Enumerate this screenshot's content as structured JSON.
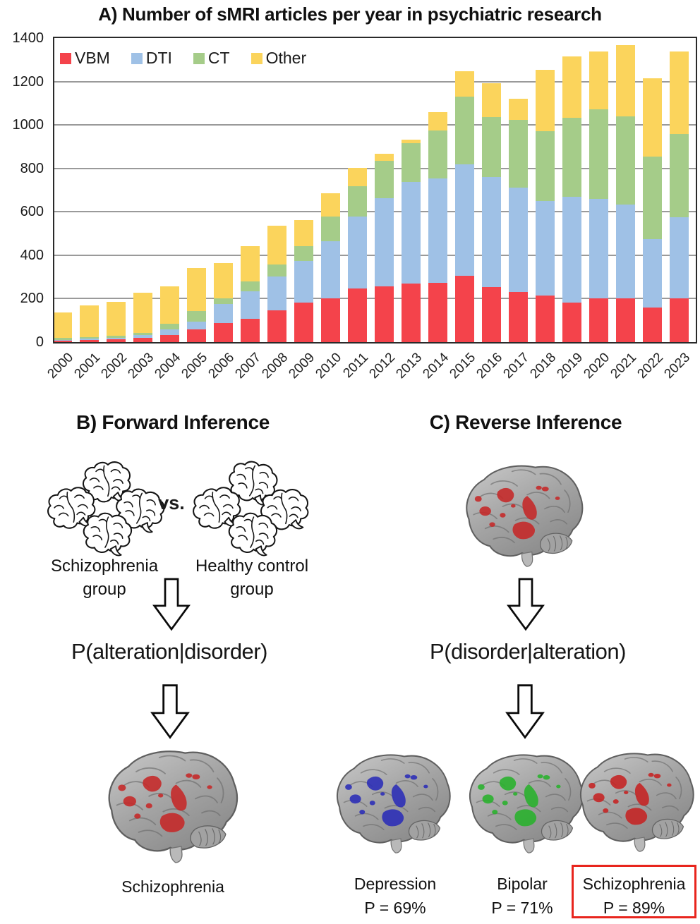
{
  "panel_a": {
    "title": "A) Number of sMRI articles per year in psychiatric research"
  },
  "chart_data": {
    "type": "bar",
    "stacked": true,
    "title": "A) Number of sMRI articles per year in psychiatric research",
    "categories": [
      "2000",
      "2001",
      "2002",
      "2003",
      "2004",
      "2005",
      "2006",
      "2007",
      "2008",
      "2009",
      "2010",
      "2011",
      "2012",
      "2013",
      "2014",
      "2015",
      "2016",
      "2017",
      "2018",
      "2019",
      "2020",
      "2021",
      "2022",
      "2023"
    ],
    "series": [
      {
        "name": "VBM",
        "color": "#F4434B",
        "values": [
          5,
          10,
          13,
          18,
          34,
          60,
          88,
          108,
          145,
          182,
          200,
          248,
          258,
          270,
          273,
          307,
          254,
          230,
          214,
          182,
          200,
          203,
          160,
          203
        ]
      },
      {
        "name": "DTI",
        "color": "#9FC1E6",
        "values": [
          5,
          5,
          6,
          14,
          25,
          35,
          88,
          125,
          157,
          192,
          265,
          330,
          405,
          468,
          482,
          513,
          505,
          482,
          436,
          488,
          459,
          432,
          314,
          373
        ]
      },
      {
        "name": "CT",
        "color": "#A5CC89",
        "values": [
          8,
          8,
          10,
          10,
          27,
          47,
          25,
          45,
          55,
          68,
          112,
          140,
          173,
          178,
          218,
          312,
          276,
          310,
          322,
          363,
          412,
          404,
          382,
          382
        ]
      },
      {
        "name": "Other",
        "color": "#FBD45C",
        "values": [
          117,
          147,
          156,
          186,
          172,
          198,
          164,
          165,
          178,
          121,
          110,
          85,
          30,
          18,
          85,
          115,
          158,
          100,
          282,
          282,
          269,
          330,
          360,
          380
        ]
      }
    ],
    "ylim": [
      0,
      1400
    ],
    "yticks": [
      0,
      200,
      400,
      600,
      800,
      1000,
      1200,
      1400
    ],
    "grid": true,
    "legend_position": "top-left-inside"
  },
  "panel_b": {
    "title": "B) Forward Inference",
    "vs_label": "vs.",
    "group_left": {
      "line1": "Schizophrenia",
      "line2": "group"
    },
    "group_right": {
      "line1": "Healthy control",
      "line2": "group"
    },
    "formula": "P(alteration|disorder)",
    "result_label": "Schizophrenia",
    "result_color": "#c62828"
  },
  "panel_c": {
    "title": "C) Reverse Inference",
    "input_brain_color": "#c62828",
    "formula": "P(disorder|alteration)",
    "results": [
      {
        "label": "Depression",
        "probability": "P = 69%",
        "color": "#2b2db8",
        "highlighted": false
      },
      {
        "label": "Bipolar",
        "probability": "P = 71%",
        "color": "#28b22c",
        "highlighted": false
      },
      {
        "label": "Schizophrenia",
        "probability": "P = 89%",
        "color": "#c62323",
        "highlighted": true
      }
    ],
    "highlight_box_color": "#e8251d"
  }
}
